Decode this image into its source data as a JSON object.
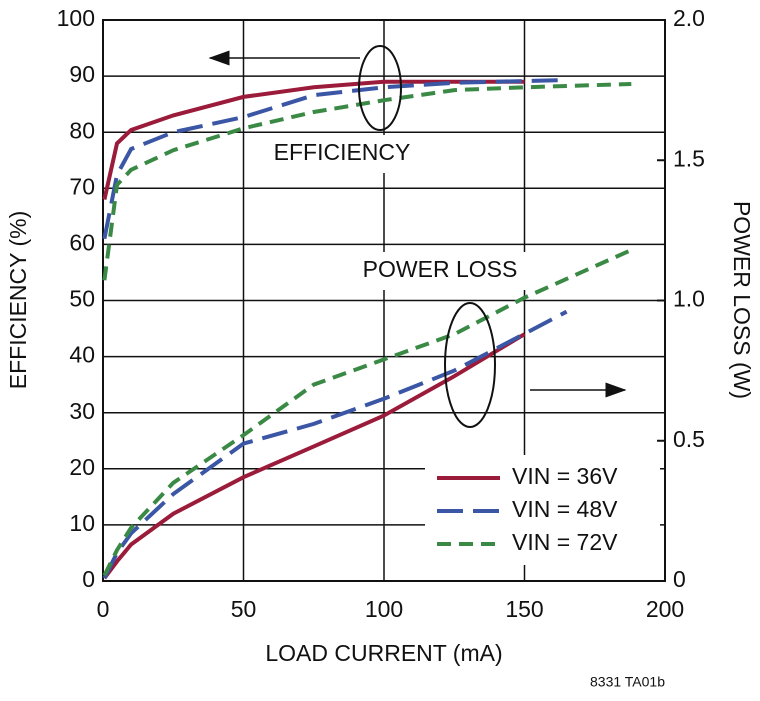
{
  "chart_data": {
    "type": "line",
    "xlabel": "LOAD CURRENT (mA)",
    "ylabel": "EFFICIENCY (%)",
    "y2label": "POWER LOSS (W)",
    "annotations": [
      "EFFICIENCY",
      "POWER LOSS"
    ],
    "footnote": "8331 TA01b",
    "xlim": [
      0,
      200
    ],
    "xticks": [
      0,
      50,
      100,
      150,
      200
    ],
    "ylim": [
      0,
      100
    ],
    "yticks": [
      0,
      10,
      20,
      30,
      40,
      50,
      60,
      70,
      80,
      90,
      100
    ],
    "y2lim": [
      0,
      2
    ],
    "y2ticks": [
      0,
      0.5,
      {
        "value": 1,
        "label": "1.0"
      },
      1.5,
      {
        "value": 2,
        "label": "2.0"
      }
    ],
    "grid": true,
    "series": [
      {
        "name": "VIN = 36V",
        "color": "#9b1b3a",
        "dash": "solid",
        "x": [
          0.5,
          5,
          10,
          25,
          50,
          75,
          100,
          125,
          150
        ],
        "efficiency": [
          68,
          78,
          80.4,
          83,
          86.3,
          88,
          89,
          89,
          89
        ],
        "power_loss": [
          0.01,
          0.07,
          0.13,
          0.24,
          0.37,
          0.48,
          0.59,
          0.73,
          0.88
        ]
      },
      {
        "name": "VIN = 48V",
        "color": "#3a56a5",
        "dash": "long",
        "x": [
          0.5,
          5,
          10,
          25,
          50,
          75,
          100,
          125,
          165
        ],
        "efficiency": [
          61,
          72.4,
          77,
          80,
          82.7,
          86.6,
          88,
          88.8,
          89.3
        ],
        "power_loss": [
          0.01,
          0.1,
          0.17,
          0.31,
          0.49,
          0.56,
          0.65,
          0.75,
          0.96
        ]
      },
      {
        "name": "VIN = 72V",
        "color": "#3a8a46",
        "dash": "short",
        "x": [
          0.5,
          5,
          10,
          25,
          50,
          75,
          100,
          125,
          150,
          188
        ],
        "efficiency": [
          53.6,
          70.6,
          73.3,
          76.8,
          80.7,
          83.6,
          85.7,
          87.5,
          88,
          88.6
        ],
        "power_loss": [
          0.02,
          0.11,
          0.19,
          0.35,
          0.52,
          0.7,
          0.79,
          0.88,
          1.01,
          1.18
        ]
      }
    ]
  }
}
